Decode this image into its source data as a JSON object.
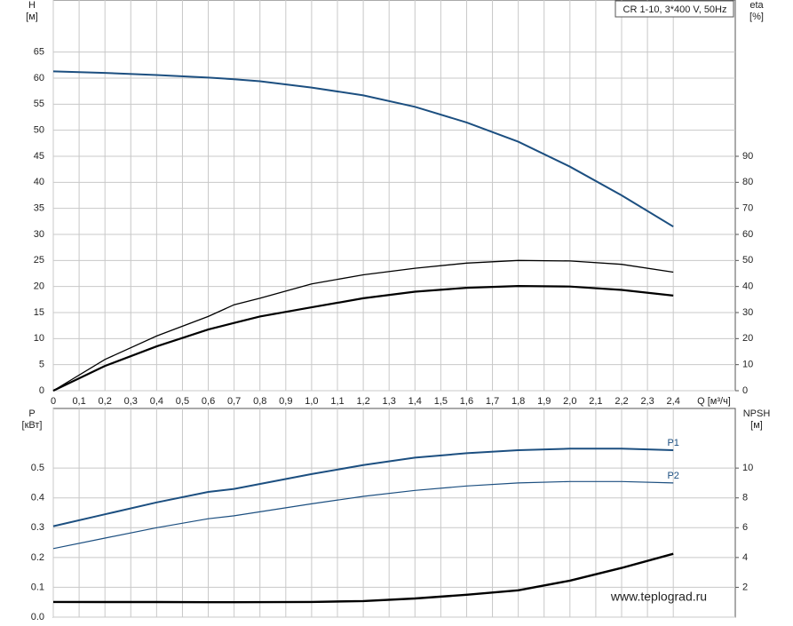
{
  "chart_data": [
    {
      "type": "line",
      "title": "CR 1-10, 3*400 V, 50Hz",
      "x_label": "Q [м³/ч]",
      "y_label": "H",
      "y_unit": "[м]",
      "y2_label": "eta",
      "y2_unit": "[%]",
      "xlim": [
        0,
        2.64
      ],
      "ylim": [
        0,
        75
      ],
      "y2lim": [
        0,
        150
      ],
      "grid": true,
      "xticks": [
        0,
        {
          "value": 0.1,
          "label": "0,1"
        },
        {
          "value": 0.2,
          "label": "0,2"
        },
        {
          "value": 0.3,
          "label": "0,3"
        },
        {
          "value": 0.4,
          "label": "0,4"
        },
        {
          "value": 0.5,
          "label": "0,5"
        },
        {
          "value": 0.6,
          "label": "0,6"
        },
        {
          "value": 0.7,
          "label": "0,7"
        },
        {
          "value": 0.8,
          "label": "0,8"
        },
        {
          "value": 0.9,
          "label": "0,9"
        },
        {
          "value": 1,
          "label": "1,0"
        },
        {
          "value": 1.1,
          "label": "1,1"
        },
        {
          "value": 1.2,
          "label": "1,2"
        },
        {
          "value": 1.3,
          "label": "1,3"
        },
        {
          "value": 1.4,
          "label": "1,4"
        },
        {
          "value": 1.5,
          "label": "1,5"
        },
        {
          "value": 1.6,
          "label": "1,6"
        },
        {
          "value": 1.7,
          "label": "1,7"
        },
        {
          "value": 1.8,
          "label": "1,8"
        },
        {
          "value": 1.9,
          "label": "1,9"
        },
        {
          "value": 2,
          "label": "2,0"
        },
        {
          "value": 2.1,
          "label": "2,1"
        },
        {
          "value": 2.2,
          "label": "2,2"
        },
        {
          "value": 2.3,
          "label": "2,3"
        },
        {
          "value": 2.4,
          "label": "2,4"
        }
      ],
      "yticks": [
        0,
        5,
        10,
        15,
        20,
        25,
        30,
        35,
        40,
        45,
        50,
        55,
        60,
        65
      ],
      "y2ticks": [
        0,
        10,
        20,
        30,
        40,
        50,
        60,
        70,
        80,
        90
      ],
      "x": [
        0,
        0.2,
        0.4,
        0.6,
        0.7,
        0.8,
        1.0,
        1.2,
        1.4,
        1.6,
        1.8,
        2.0,
        2.2,
        2.4
      ],
      "series": [
        {
          "color": "#1c4f80",
          "line_width": 2,
          "values": [
            61.3,
            61,
            60.6,
            60.1,
            59.8,
            59.4,
            58.2,
            56.7,
            54.5,
            51.5,
            47.8,
            43,
            37.5,
            31.5
          ]
        },
        {
          "color": "#000000",
          "line_width": 1.3,
          "axis": "y2",
          "values": [
            0,
            12,
            21,
            28.5,
            33,
            35.5,
            41,
            44.5,
            47,
            49,
            50,
            49.8,
            48.5,
            45.5
          ]
        },
        {
          "color": "#000000",
          "line_width": 2.2,
          "axis": "y2",
          "values": [
            0,
            9.5,
            17,
            23.5,
            26,
            28.5,
            32,
            35.5,
            38,
            39.5,
            40.2,
            40,
            38.7,
            36.5
          ]
        }
      ]
    },
    {
      "type": "line",
      "y_label": "P",
      "y_unit": "[кВт]",
      "y2_label": "NPSH",
      "y2_unit": "[м]",
      "annotation": "www.teplograd.ru",
      "xlim": [
        0,
        2.64
      ],
      "ylim": [
        0,
        0.7
      ],
      "y2lim": [
        0,
        14
      ],
      "grid": true,
      "xticks": [
        0,
        0.1,
        0.2,
        0.3,
        0.4,
        0.5,
        0.6,
        0.7,
        0.8,
        0.9,
        1,
        1.1,
        1.2,
        1.3,
        1.4,
        1.5,
        1.6,
        1.7,
        1.8,
        1.9,
        2,
        2.1,
        2.2,
        2.3,
        2.4
      ],
      "yticks": [
        {
          "value": 0,
          "label": "0.0"
        },
        0.1,
        0.2,
        0.3,
        0.4,
        0.5
      ],
      "y2ticks": [
        2,
        4,
        6,
        8,
        10
      ],
      "x": [
        0,
        0.2,
        0.4,
        0.6,
        0.7,
        1.0,
        1.2,
        1.4,
        1.6,
        1.8,
        2.0,
        2.2,
        2.4
      ],
      "series": [
        {
          "name": "P1",
          "color": "#1c4f80",
          "line_width": 2,
          "values": [
            0.305,
            0.345,
            0.385,
            0.42,
            0.43,
            0.48,
            0.51,
            0.535,
            0.55,
            0.56,
            0.565,
            0.565,
            0.56
          ]
        },
        {
          "name": "P2",
          "color": "#1c4f80",
          "line_width": 1.2,
          "values": [
            0.23,
            0.265,
            0.3,
            0.33,
            0.34,
            0.38,
            0.405,
            0.425,
            0.44,
            0.45,
            0.455,
            0.455,
            0.45
          ]
        },
        {
          "color": "#000000",
          "line_width": 2.4,
          "axis": "y2",
          "values": [
            1.02,
            1.01,
            1.01,
            1.0,
            1.0,
            1.02,
            1.08,
            1.25,
            1.5,
            1.8,
            2.45,
            3.3,
            4.25
          ]
        }
      ]
    }
  ]
}
